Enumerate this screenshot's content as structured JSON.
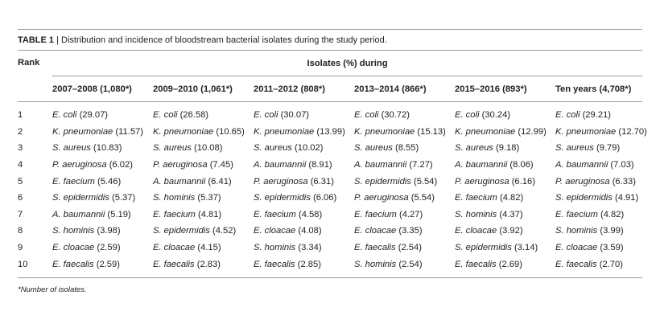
{
  "caption": {
    "label": "TABLE 1",
    "separator": " | ",
    "text": "Distribution and incidence of bloodstream bacterial isolates during the study period."
  },
  "table": {
    "rank_header": "Rank",
    "group_header": "Isolates (%) during",
    "periods": [
      "2007–2008 (1,080*)",
      "2009–2010 (1,061*)",
      "2011–2012 (808*)",
      "2013–2014 (866*)",
      "2015–2016 (893*)",
      "Ten years (4,708*)"
    ],
    "rows": [
      {
        "rank": "1",
        "cells": [
          {
            "sp": "E. coli",
            "pct": " (29.07)"
          },
          {
            "sp": "E. coli",
            "pct": " (26.58)"
          },
          {
            "sp": "E. coli",
            "pct": " (30.07)"
          },
          {
            "sp": "E. coli",
            "pct": " (30.72)"
          },
          {
            "sp": "E. coli",
            "pct": " (30.24)"
          },
          {
            "sp": "E. coli",
            "pct": " (29.21)"
          }
        ]
      },
      {
        "rank": "2",
        "cells": [
          {
            "sp": "K. pneumoniae",
            "pct": " (11.57)"
          },
          {
            "sp": "K. pneumoniae",
            "pct": " (10.65)"
          },
          {
            "sp": "K. pneumoniae",
            "pct": " (13.99)"
          },
          {
            "sp": "K. pneumoniae",
            "pct": " (15.13)"
          },
          {
            "sp": "K. pneumoniae",
            "pct": " (12.99)"
          },
          {
            "sp": "K. pneumoniae",
            "pct": " (12.70)"
          }
        ]
      },
      {
        "rank": "3",
        "cells": [
          {
            "sp": "S. aureus",
            "pct": " (10.83)"
          },
          {
            "sp": "S. aureus",
            "pct": " (10.08)"
          },
          {
            "sp": "S. aureus",
            "pct": " (10.02)"
          },
          {
            "sp": "S. aureus",
            "pct": " (8.55)"
          },
          {
            "sp": "S. aureus",
            "pct": " (9.18)"
          },
          {
            "sp": "S. aureus",
            "pct": " (9.79)"
          }
        ]
      },
      {
        "rank": "4",
        "cells": [
          {
            "sp": "P. aeruginosa",
            "pct": " (6.02)"
          },
          {
            "sp": "P. aeruginosa",
            "pct": " (7.45)"
          },
          {
            "sp": "A. baumannii",
            "pct": " (8.91)"
          },
          {
            "sp": "A. baumannii",
            "pct": " (7.27)"
          },
          {
            "sp": "A. baumannii",
            "pct": " (8.06)"
          },
          {
            "sp": "A. baumannii",
            "pct": " (7.03)"
          }
        ]
      },
      {
        "rank": "5",
        "cells": [
          {
            "sp": "E. faecium",
            "pct": " (5.46)"
          },
          {
            "sp": "A. baumannii",
            "pct": " (6.41)"
          },
          {
            "sp": "P. aeruginosa",
            "pct": " (6.31)"
          },
          {
            "sp": "S. epidermidis",
            "pct": " (5.54)"
          },
          {
            "sp": "P. aeruginosa",
            "pct": " (6.16)"
          },
          {
            "sp": "P. aeruginosa",
            "pct": " (6.33)"
          }
        ]
      },
      {
        "rank": "6",
        "cells": [
          {
            "sp": "S. epidermidis",
            "pct": " (5.37)"
          },
          {
            "sp": "S. hominis",
            "pct": " (5.37)"
          },
          {
            "sp": "S. epidermidis",
            "pct": " (6.06)"
          },
          {
            "sp": "P. aeruginosa",
            "pct": " (5.54)"
          },
          {
            "sp": "E. faecium",
            "pct": " (4.82)"
          },
          {
            "sp": "S. epidermidis",
            "pct": " (4.91)"
          }
        ]
      },
      {
        "rank": "7",
        "cells": [
          {
            "sp": "A. baumannii",
            "pct": " (5.19)"
          },
          {
            "sp": "E. faecium",
            "pct": " (4.81)"
          },
          {
            "sp": "E. faecium",
            "pct": " (4.58)"
          },
          {
            "sp": "E. faecium",
            "pct": " (4.27)"
          },
          {
            "sp": "S. hominis",
            "pct": " (4.37)"
          },
          {
            "sp": "E. faecium",
            "pct": " (4.82)"
          }
        ]
      },
      {
        "rank": "8",
        "cells": [
          {
            "sp": "S. hominis",
            "pct": " (3.98)"
          },
          {
            "sp": "S. epidermidis",
            "pct": " (4.52)"
          },
          {
            "sp": "E. cloacae",
            "pct": " (4.08)"
          },
          {
            "sp": "E. cloacae",
            "pct": " (3.35)"
          },
          {
            "sp": "E. cloacae",
            "pct": " (3.92)"
          },
          {
            "sp": "S. hominis",
            "pct": " (3.99)"
          }
        ]
      },
      {
        "rank": "9",
        "cells": [
          {
            "sp": "E. cloacae",
            "pct": " (2.59)"
          },
          {
            "sp": "E. cloacae",
            "pct": " (4.15)"
          },
          {
            "sp": "S. hominis",
            "pct": " (3.34)"
          },
          {
            "sp": "E. faecalis",
            "pct": " (2.54)"
          },
          {
            "sp": "S. epidermidis",
            "pct": " (3.14)"
          },
          {
            "sp": "E. cloacae",
            "pct": " (3.59)"
          }
        ]
      },
      {
        "rank": "10",
        "cells": [
          {
            "sp": "E. faecalis",
            "pct": " (2.59)"
          },
          {
            "sp": "E. faecalis",
            "pct": " (2.83)"
          },
          {
            "sp": "E. faecalis",
            "pct": " (2.85)"
          },
          {
            "sp": "S. hominis",
            "pct": " (2.54)"
          },
          {
            "sp": "E. faecalis",
            "pct": " (2.69)"
          },
          {
            "sp": "E. faecalis",
            "pct": " (2.70)"
          }
        ]
      }
    ]
  },
  "footnote": "*Number of isolates."
}
